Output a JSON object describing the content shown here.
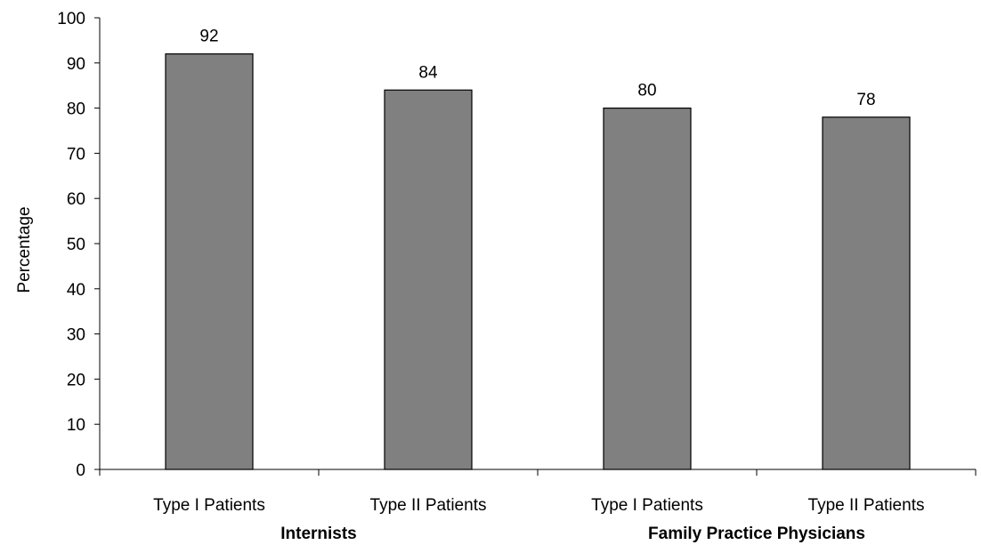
{
  "chart_data": {
    "type": "bar",
    "title": "",
    "xlabel": "",
    "ylabel": "Percentage",
    "ylim": [
      0,
      100
    ],
    "yticks": [
      0,
      10,
      20,
      30,
      40,
      50,
      60,
      70,
      80,
      90,
      100
    ],
    "grid": false,
    "categories": [
      "Type I Patients",
      "Type II Patients",
      "Type I Patients",
      "Type II Patients"
    ],
    "values": [
      92,
      84,
      80,
      78
    ],
    "data_labels": [
      "92",
      "84",
      "80",
      "78"
    ],
    "groups": [
      {
        "label": "Internists",
        "categories": [
          0,
          1
        ]
      },
      {
        "label": "Family Practice Physicians",
        "categories": [
          2,
          3
        ]
      }
    ],
    "bar_color": "#808080",
    "bar_border_color": "#000000"
  }
}
